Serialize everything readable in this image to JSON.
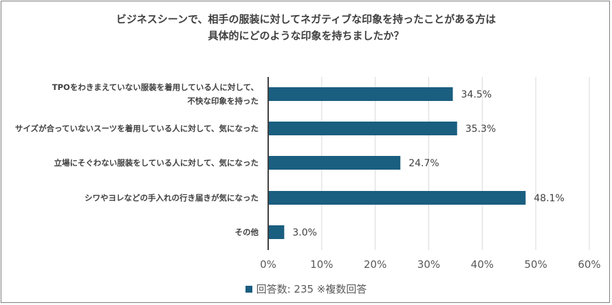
{
  "chart_data": {
    "type": "bar",
    "orientation": "horizontal",
    "title_lines": [
      "ビジネスシーンで、相手の服装に対してネガティブな印象を持ったことがある方は",
      "具体的にどのような印象を持ちましたか？"
    ],
    "categories": [
      [
        "TPOをわきまえていない服装を着用している人に対して、",
        "不快な印象を持った"
      ],
      [
        "サイズが合っていないスーツを着用している人に対して、気になった"
      ],
      [
        "立場にそぐわない服装をしている人に対して、気になった"
      ],
      [
        "シワやヨレなどの手入れの行き届きが気になった"
      ],
      [
        "その他"
      ]
    ],
    "values": [
      34.5,
      35.3,
      24.7,
      48.1,
      3.0
    ],
    "value_labels": [
      "34.5%",
      "35.3%",
      "24.7%",
      "48.1%",
      "3.0%"
    ],
    "xlim": [
      0,
      60
    ],
    "xticks": [
      "0%",
      "10%",
      "20%",
      "30%",
      "40%",
      "50%",
      "60%"
    ],
    "grid": true,
    "bar_color": "#1a5e80",
    "legend": {
      "position": "bottom",
      "label": "回答数:  235   ※複数回答"
    }
  }
}
